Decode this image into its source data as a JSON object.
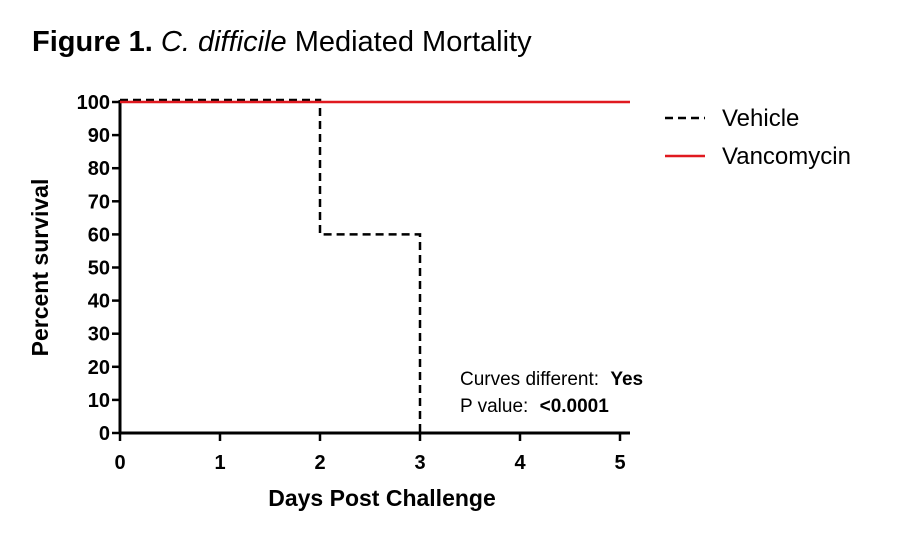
{
  "figure": {
    "prefix": "Figure 1.",
    "organism": "C. difficile",
    "suffix": "Mediated Mortality"
  },
  "chart_data": {
    "type": "line",
    "step": true,
    "xlabel": "Days Post Challenge",
    "ylabel": "Percent survival",
    "xlim": [
      0,
      5.1
    ],
    "ylim": [
      0,
      100
    ],
    "x_ticks": [
      0,
      1,
      2,
      3,
      4,
      5
    ],
    "y_ticks": [
      0,
      10,
      20,
      30,
      40,
      50,
      60,
      70,
      80,
      90,
      100
    ],
    "grid": false,
    "legend_position": "top-right",
    "series": [
      {
        "name": "Vehicle",
        "color": "#000000",
        "style": "dashed",
        "points": [
          [
            0,
            100
          ],
          [
            2,
            100
          ],
          [
            2,
            60
          ],
          [
            3,
            60
          ],
          [
            3,
            0
          ]
        ]
      },
      {
        "name": "Vancomycin",
        "color": "#e0191f",
        "style": "solid",
        "points": [
          [
            0,
            100
          ],
          [
            5.1,
            100
          ]
        ]
      }
    ],
    "annotations": {
      "curves_label": "Curves different:",
      "curves_value": "Yes",
      "p_label": "P value:",
      "p_value": "<0.0001"
    }
  }
}
